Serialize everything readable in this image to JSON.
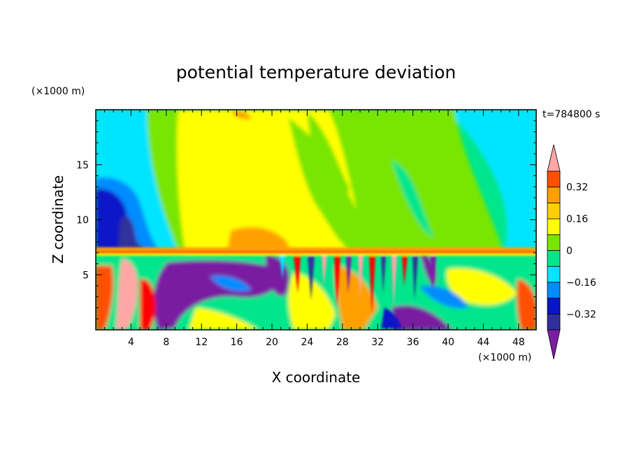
{
  "chart_data": {
    "type": "heatmap",
    "title": "potential temperature deviation",
    "xlabel": "X coordinate",
    "ylabel": "Z coordinate",
    "x_unit": "(×1000 m)",
    "y_unit": "(×1000 m)",
    "time_label": "t=784800 s",
    "xlim": [
      0,
      50
    ],
    "ylim": [
      0,
      20
    ],
    "x_ticks": [
      4,
      8,
      12,
      16,
      20,
      24,
      28,
      32,
      36,
      40,
      44,
      48
    ],
    "y_ticks": [
      5,
      10,
      15
    ],
    "colorbar": {
      "levels": [
        -0.4,
        -0.32,
        -0.24,
        -0.16,
        -0.08,
        0,
        0.08,
        0.16,
        0.24,
        0.32,
        0.4
      ],
      "labels": [
        "0.32",
        "0.16",
        "0",
        "−0.16",
        "−0.32"
      ],
      "label_values": [
        0.32,
        0.16,
        0,
        -0.16,
        -0.32
      ],
      "colors": [
        "#7a1fa2",
        "#30309c",
        "#0a14c8",
        "#008cff",
        "#00e5ff",
        "#00e68c",
        "#78e600",
        "#ffff00",
        "#ffd000",
        "#ffa000",
        "#ff5000",
        "#ff0000"
      ],
      "extend_low_color": "#7a1fa2",
      "extend_high_color": "#ffa6a6"
    }
  }
}
